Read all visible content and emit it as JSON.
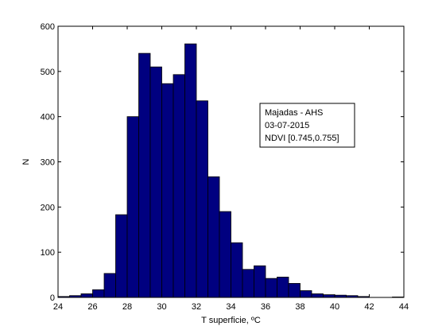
{
  "chart_data": {
    "type": "bar",
    "title": "",
    "xlabel": "T superficie, ºC",
    "ylabel": "N",
    "xlim": [
      24,
      44
    ],
    "ylim": [
      0,
      600
    ],
    "xticks": [
      24,
      26,
      28,
      30,
      32,
      34,
      36,
      38,
      40,
      42,
      44
    ],
    "yticks": [
      0,
      100,
      200,
      300,
      400,
      500,
      600
    ],
    "grid": false,
    "bar_color": "#000080",
    "bar_edge_color": "#000000",
    "bin_edges": [
      24.0,
      24.667,
      25.333,
      26.0,
      26.667,
      27.333,
      28.0,
      28.667,
      29.333,
      30.0,
      30.667,
      31.333,
      32.0,
      32.667,
      33.333,
      34.0,
      34.667,
      35.333,
      36.0,
      36.667,
      37.333,
      38.0,
      38.667,
      39.333,
      40.0,
      40.667,
      41.333,
      42.0,
      42.667,
      43.333,
      44.0
    ],
    "values": [
      2,
      4,
      8,
      17,
      53,
      183,
      400,
      540,
      510,
      473,
      493,
      561,
      435,
      267,
      190,
      121,
      62,
      70,
      42,
      45,
      31,
      15,
      8,
      6,
      5,
      4,
      2,
      0,
      0,
      1
    ],
    "annotation": [
      "Majadas - AHS",
      "03-07-2015",
      "NDVI [0.745,0.755]"
    ]
  }
}
